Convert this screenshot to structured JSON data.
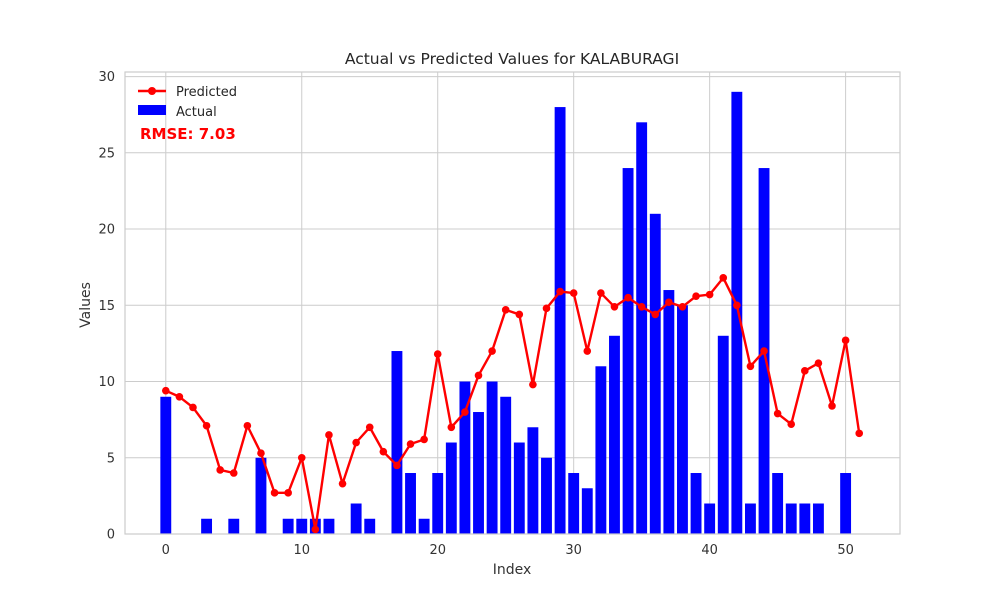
{
  "chart_data": {
    "type": "bar",
    "title": "Actual vs Predicted Values for KALABURAGI",
    "xlabel": "Index",
    "ylabel": "Values",
    "xlim": [
      -3,
      54
    ],
    "ylim": [
      0,
      30.3
    ],
    "xticks": [
      0,
      10,
      20,
      30,
      40,
      50
    ],
    "yticks": [
      0,
      5,
      10,
      15,
      20,
      25,
      30
    ],
    "grid": true,
    "legend_position": "top-left",
    "annotation": "RMSE: 7.03",
    "colors": {
      "actual": "#0000ff",
      "predicted": "#ff0000",
      "grid": "#cccccc",
      "axes_edge": "#cccccc"
    },
    "series": [
      {
        "name": "Predicted",
        "kind": "line",
        "values": [
          9.4,
          9.0,
          8.3,
          7.1,
          4.2,
          4.0,
          7.1,
          5.3,
          2.7,
          2.7,
          5.0,
          0.3,
          6.5,
          3.3,
          6.0,
          7.0,
          5.4,
          4.5,
          5.9,
          6.2,
          11.8,
          7.0,
          8.0,
          10.4,
          12.0,
          14.7,
          14.4,
          9.8,
          14.8,
          15.9,
          15.8,
          12.0,
          15.8,
          14.9,
          15.5,
          14.9,
          14.4,
          15.2,
          14.9,
          15.6,
          15.7,
          16.8,
          15.0,
          11.0,
          12.0,
          7.9,
          7.2,
          10.7,
          11.2,
          8.4,
          12.7,
          6.6
        ]
      },
      {
        "name": "Actual",
        "kind": "bar",
        "values": [
          9,
          0,
          0,
          1,
          0,
          1,
          0,
          5,
          0,
          1,
          1,
          1,
          1,
          0,
          2,
          1,
          0,
          12,
          4,
          1,
          4,
          6,
          10,
          8,
          10,
          9,
          6,
          7,
          5,
          28,
          4,
          3,
          11,
          13,
          24,
          27,
          21,
          16,
          15,
          4,
          2,
          13,
          29,
          2,
          24,
          4,
          2,
          2,
          2,
          0,
          4,
          0
        ]
      }
    ]
  }
}
